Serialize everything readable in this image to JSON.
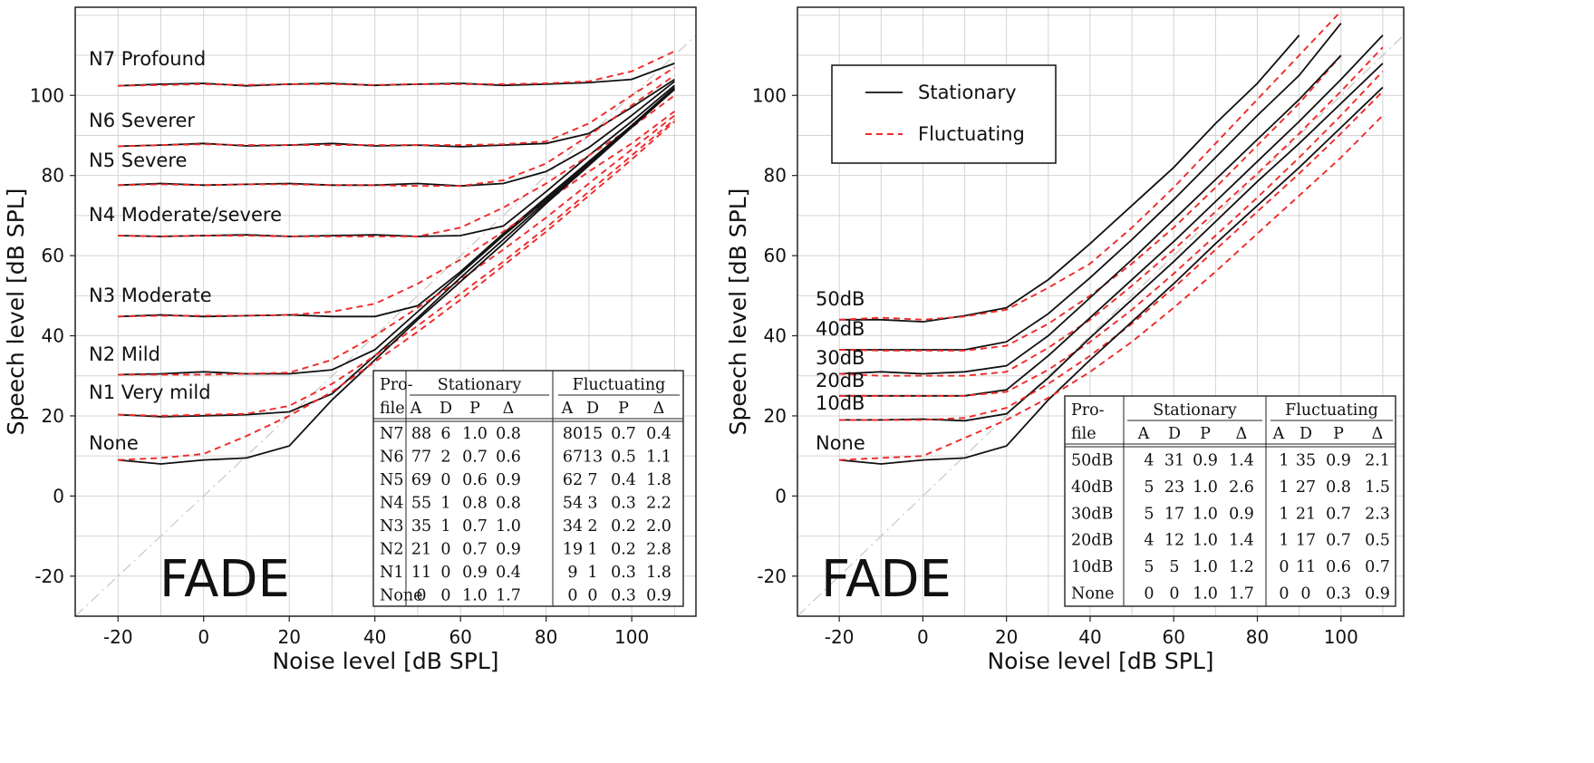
{
  "chart_data": [
    {
      "type": "line",
      "xlabel": "Noise level [dB SPL]",
      "ylabel": "Speech level [dB SPL]",
      "xlim": [
        -30,
        115
      ],
      "ylim": [
        -30,
        122
      ],
      "xticks": [
        -20,
        0,
        20,
        40,
        60,
        80,
        100
      ],
      "yticks": [
        -20,
        0,
        20,
        40,
        60,
        80,
        100
      ],
      "grid": true,
      "diagonal_reference": true,
      "watermark": "FADE",
      "x": [
        -20,
        -10,
        0,
        10,
        20,
        30,
        40,
        50,
        60,
        70,
        80,
        90,
        100,
        110
      ],
      "series": [
        {
          "name": "N7 Profound",
          "stationary": [
            102.4,
            102.8,
            103.0,
            102.4,
            102.8,
            103.0,
            102.5,
            102.8,
            103.0,
            102.5,
            102.8,
            103.2,
            104.0,
            108.0
          ],
          "fluctuating": [
            102.4,
            102.6,
            102.8,
            102.6,
            102.8,
            102.8,
            102.6,
            102.8,
            102.8,
            102.8,
            103.0,
            103.5,
            106.0,
            111.0
          ]
        },
        {
          "name": "N6 Severer",
          "stationary": [
            87.3,
            87.6,
            88.0,
            87.4,
            87.6,
            88.0,
            87.4,
            87.6,
            87.2,
            87.6,
            88.0,
            90.5,
            97.0,
            104.0
          ],
          "fluctuating": [
            87.3,
            87.6,
            87.8,
            87.6,
            87.6,
            87.6,
            87.6,
            87.6,
            87.6,
            87.8,
            88.5,
            93.0,
            100.0,
            107.0
          ]
        },
        {
          "name": "N5 Severe",
          "stationary": [
            77.6,
            78.0,
            77.6,
            77.8,
            78.0,
            77.6,
            77.6,
            78.0,
            77.4,
            78.0,
            81.0,
            87.0,
            95.0,
            103.5
          ],
          "fluctuating": [
            77.6,
            77.8,
            77.6,
            77.8,
            77.8,
            77.6,
            77.6,
            77.4,
            77.4,
            78.8,
            83.0,
            90.0,
            97.5,
            105.0
          ]
        },
        {
          "name": "N4 Moderate/severe",
          "stationary": [
            65.0,
            64.8,
            65.0,
            65.2,
            64.8,
            65.0,
            65.2,
            64.8,
            65.0,
            67.4,
            76.0,
            85.0,
            93.5,
            102.5
          ],
          "fluctuating": [
            65.0,
            64.8,
            65.0,
            65.0,
            64.8,
            64.8,
            64.8,
            64.8,
            67.0,
            72.0,
            78.0,
            85.0,
            92.0,
            100.0
          ]
        },
        {
          "name": "N3 Moderate",
          "stationary": [
            44.8,
            45.2,
            44.8,
            45.0,
            45.2,
            44.8,
            44.8,
            47.5,
            56.0,
            65.5,
            74.5,
            83.5,
            92.5,
            102.0
          ],
          "fluctuating": [
            44.8,
            45.0,
            45.0,
            45.0,
            45.2,
            46.0,
            48.0,
            53.0,
            59.0,
            66.0,
            73.5,
            81.0,
            88.0,
            96.0
          ]
        },
        {
          "name": "N2 Mild",
          "stationary": [
            30.3,
            30.5,
            31.0,
            30.5,
            30.5,
            31.5,
            36.5,
            46.0,
            55.5,
            65.0,
            74.0,
            83.5,
            92.5,
            101.5
          ],
          "fluctuating": [
            30.3,
            30.3,
            30.3,
            30.5,
            30.8,
            34.0,
            40.0,
            47.0,
            54.0,
            61.5,
            69.5,
            78.0,
            86.5,
            95.0
          ]
        },
        {
          "name": "N1 Very mild",
          "stationary": [
            20.3,
            19.8,
            20.0,
            20.3,
            21.0,
            25.5,
            35.0,
            44.5,
            54.5,
            64.0,
            73.5,
            83.0,
            92.5,
            101.5
          ],
          "fluctuating": [
            20.3,
            20.0,
            20.3,
            20.5,
            22.5,
            28.0,
            35.0,
            42.5,
            50.5,
            58.5,
            67.0,
            76.0,
            85.0,
            94.0
          ]
        },
        {
          "name": "None",
          "stationary": [
            9.0,
            8.0,
            9.0,
            9.5,
            12.5,
            24.0,
            34.0,
            44.0,
            53.5,
            63.0,
            73.0,
            82.5,
            92.0,
            101.5
          ],
          "fluctuating": [
            9.0,
            9.5,
            10.5,
            15.0,
            20.0,
            26.0,
            33.5,
            41.0,
            49.0,
            57.5,
            66.0,
            75.0,
            84.0,
            93.5
          ]
        }
      ],
      "table": {
        "headers": [
          "Pro-",
          "file",
          "Stationary",
          "Fluctuating",
          "A",
          "D",
          "P",
          "Δ"
        ],
        "rows": [
          [
            "N7",
            "88",
            "6",
            "1.0",
            "0.8",
            "80",
            "15",
            "0.7",
            "0.4"
          ],
          [
            "N6",
            "77",
            "2",
            "0.7",
            "0.6",
            "67",
            "13",
            "0.5",
            "1.1"
          ],
          [
            "N5",
            "69",
            "0",
            "0.6",
            "0.9",
            "62",
            "7",
            "0.4",
            "1.8"
          ],
          [
            "N4",
            "55",
            "1",
            "0.8",
            "0.8",
            "54",
            "3",
            "0.3",
            "2.2"
          ],
          [
            "N3",
            "35",
            "1",
            "0.7",
            "1.0",
            "34",
            "2",
            "0.2",
            "2.0"
          ],
          [
            "N2",
            "21",
            "0",
            "0.7",
            "0.9",
            "19",
            "1",
            "0.2",
            "2.8"
          ],
          [
            "N1",
            "11",
            "0",
            "0.9",
            "0.4",
            "9",
            "1",
            "0.3",
            "1.8"
          ],
          [
            "None",
            "0",
            "0",
            "1.0",
            "1.7",
            "0",
            "0",
            "0.3",
            "0.9"
          ]
        ]
      }
    },
    {
      "type": "line",
      "xlabel": "Noise level [dB SPL]",
      "ylabel": "Speech level [dB SPL]",
      "xlim": [
        -30,
        115
      ],
      "ylim": [
        -30,
        122
      ],
      "xticks": [
        -20,
        0,
        20,
        40,
        60,
        80,
        100
      ],
      "yticks": [
        -20,
        0,
        20,
        40,
        60,
        80,
        100
      ],
      "grid": true,
      "diagonal_reference": true,
      "watermark": "FADE",
      "legend": {
        "position": "top-left",
        "entries": [
          "Stationary",
          "Fluctuating"
        ]
      },
      "series_colors": {
        "stationary": "#111111",
        "fluctuating": "#ee2a2a"
      },
      "x": [
        -20,
        -10,
        0,
        10,
        20,
        30,
        40,
        50,
        60,
        70,
        80,
        90,
        100,
        110
      ],
      "series": [
        {
          "name": "50dB",
          "stationary": [
            44.0,
            44.0,
            43.5,
            45.0,
            47.0,
            54.0,
            63.0,
            72.5,
            82.0,
            93.0,
            103.0,
            115.0,
            null,
            null
          ],
          "fluctuating": [
            44.0,
            44.5,
            44.0,
            44.8,
            46.5,
            52.0,
            58.0,
            67.0,
            77.0,
            88.0,
            99.0,
            110.0,
            121.0,
            null
          ]
        },
        {
          "name": "40dB",
          "stationary": [
            36.5,
            36.5,
            36.5,
            36.5,
            38.5,
            45.5,
            54.5,
            64.0,
            74.0,
            84.5,
            95.0,
            105.0,
            118.0,
            null
          ],
          "fluctuating": [
            36.5,
            36.3,
            36.3,
            36.3,
            37.5,
            43.0,
            50.0,
            58.0,
            67.0,
            77.0,
            87.5,
            98.0,
            110.0,
            null
          ]
        },
        {
          "name": "30dB",
          "stationary": [
            30.5,
            31.0,
            30.5,
            31.0,
            32.5,
            40.0,
            49.5,
            59.0,
            69.0,
            79.0,
            89.0,
            99.0,
            110.0,
            null
          ],
          "fluctuating": [
            30.5,
            30.0,
            30.0,
            30.0,
            31.0,
            37.0,
            44.0,
            52.5,
            61.5,
            71.0,
            80.5,
            90.5,
            101.0,
            112.0
          ]
        },
        {
          "name": "20dB",
          "stationary": [
            25.0,
            25.0,
            25.0,
            25.0,
            26.5,
            35.0,
            44.5,
            54.0,
            63.5,
            73.5,
            83.5,
            93.5,
            104.0,
            115.0
          ],
          "fluctuating": [
            25.0,
            25.0,
            25.0,
            25.0,
            26.0,
            31.5,
            38.5,
            46.5,
            55.5,
            65.0,
            74.5,
            84.5,
            95.0,
            106.0
          ]
        },
        {
          "name": "10dB",
          "stationary": [
            19.0,
            19.0,
            19.2,
            18.8,
            20.5,
            29.5,
            39.5,
            49.0,
            58.5,
            68.5,
            78.5,
            88.0,
            98.0,
            108.0
          ],
          "fluctuating": [
            19.0,
            19.0,
            19.0,
            19.5,
            22.0,
            28.0,
            35.0,
            43.0,
            52.0,
            61.5,
            71.0,
            80.5,
            90.5,
            101.0
          ]
        },
        {
          "name": "None",
          "stationary": [
            9.0,
            8.0,
            9.0,
            9.5,
            12.5,
            24.0,
            34.0,
            43.5,
            53.0,
            63.0,
            72.5,
            82.0,
            92.0,
            102.0
          ],
          "fluctuating": [
            9.0,
            9.5,
            10.0,
            14.5,
            19.0,
            24.5,
            31.0,
            38.5,
            47.0,
            56.0,
            65.5,
            75.0,
            84.5,
            95.0
          ]
        }
      ],
      "table": {
        "headers": [
          "Pro-",
          "file",
          "Stationary",
          "Fluctuating",
          "A",
          "D",
          "P",
          "Δ"
        ],
        "rows": [
          [
            "50dB",
            "4",
            "31",
            "0.9",
            "1.4",
            "1",
            "35",
            "0.9",
            "2.1"
          ],
          [
            "40dB",
            "5",
            "23",
            "1.0",
            "2.6",
            "1",
            "27",
            "0.8",
            "1.5"
          ],
          [
            "30dB",
            "5",
            "17",
            "1.0",
            "0.9",
            "1",
            "21",
            "0.7",
            "2.3"
          ],
          [
            "20dB",
            "4",
            "12",
            "1.0",
            "1.4",
            "1",
            "17",
            "0.7",
            "0.5"
          ],
          [
            "10dB",
            "5",
            "5",
            "1.0",
            "1.2",
            "0",
            "11",
            "0.6",
            "0.7"
          ],
          [
            "None",
            "0",
            "0",
            "1.0",
            "1.7",
            "0",
            "0",
            "0.3",
            "0.9"
          ]
        ]
      }
    }
  ]
}
